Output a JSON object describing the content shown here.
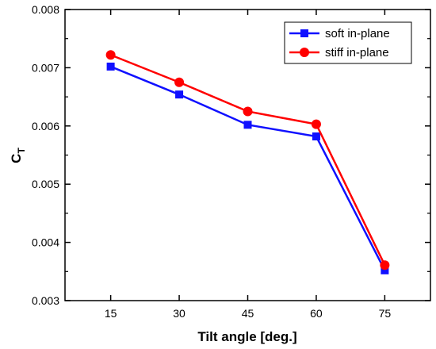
{
  "chart_data": {
    "type": "line",
    "title": "",
    "xlabel": "Tilt angle [deg.]",
    "ylabel_main": "C",
    "ylabel_sub": "T",
    "x": [
      15,
      30,
      45,
      60,
      75
    ],
    "x_ticks": [
      "15",
      "30",
      "45",
      "60",
      "75"
    ],
    "xlim": [
      5,
      85
    ],
    "ylim": [
      0.003,
      0.008
    ],
    "y_ticks": [
      0.003,
      0.004,
      0.005,
      0.006,
      0.007,
      0.008
    ],
    "y_tick_labels": [
      "0.003",
      "0.004",
      "0.005",
      "0.006",
      "0.007",
      "0.008"
    ],
    "grid": false,
    "legend_position": "top-right",
    "series": [
      {
        "name": "soft in-plane",
        "values": [
          0.00702,
          0.00654,
          0.00602,
          0.00582,
          0.00352
        ],
        "color": "#1010ff",
        "marker": "square"
      },
      {
        "name": "stiff in-plane",
        "values": [
          0.00722,
          0.00675,
          0.00625,
          0.00603,
          0.00361
        ],
        "color": "#ff0000",
        "marker": "circle"
      }
    ]
  }
}
